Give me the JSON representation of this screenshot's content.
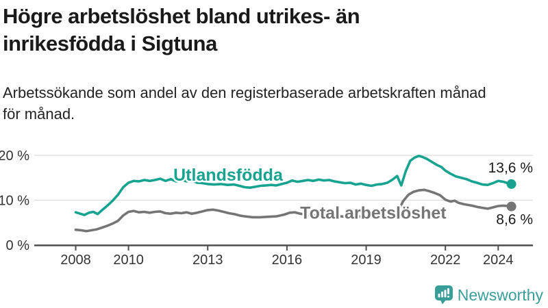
{
  "header": {
    "title_lines": [
      "Högre arbetslöshet bland utrikes- än",
      "inrikesfödda i Sigtuna"
    ],
    "subtitle_lines": [
      "Arbetssökande som andel av den registerbaserade arbetskraften månad",
      "för månad."
    ]
  },
  "footer": {
    "brand": "Newsworthy",
    "brand_icon": "bar-chart-speech-bubble",
    "brand_color": "#3a9e98"
  },
  "colors": {
    "background": "#ffffff",
    "title_text": "#1a1a1a",
    "axis_line": "#4d4d4d",
    "axis_text": "#333333",
    "gridline": "#dcdcdc",
    "series_foreign_born": "#17a38f",
    "series_total": "#757575",
    "annotation_text": "#1a1a1a"
  },
  "chart_data": {
    "type": "line",
    "title": "Högre arbetslöshet bland utrikes- än inrikesfödda i Sigtuna",
    "subtitle": "Arbetssökande som andel av den registerbaserade arbetskraften månad för månad.",
    "xlabel": "",
    "ylabel": "",
    "grid": "horizontal",
    "legend_position": "inline-labels",
    "x_range": [
      2008,
      2024.5
    ],
    "ylim": [
      0,
      21
    ],
    "y_ticks": [
      {
        "value": 0,
        "label": "0 %"
      },
      {
        "value": 10,
        "label": "10 %"
      },
      {
        "value": 20,
        "label": "20 %"
      }
    ],
    "x_ticks": [
      {
        "value": 2008,
        "label": "2008"
      },
      {
        "value": 2010,
        "label": "2010"
      },
      {
        "value": 2013,
        "label": "2013"
      },
      {
        "value": 2016,
        "label": "2016"
      },
      {
        "value": 2019,
        "label": "2019"
      },
      {
        "value": 2022,
        "label": "2022"
      },
      {
        "value": 2024,
        "label": "2024"
      }
    ],
    "series": [
      {
        "name": "Total arbetslöshet",
        "color": "#757575",
        "end_label": "8,6 %",
        "end_value": 8.6,
        "end_label_position": "below",
        "label_anchor": {
          "year": 2016.5,
          "value": 5.9
        },
        "points": [
          [
            2008.0,
            3.4
          ],
          [
            2008.2,
            3.3
          ],
          [
            2008.4,
            3.1
          ],
          [
            2008.6,
            3.3
          ],
          [
            2008.8,
            3.5
          ],
          [
            2009.0,
            3.9
          ],
          [
            2009.2,
            4.3
          ],
          [
            2009.4,
            4.8
          ],
          [
            2009.6,
            5.4
          ],
          [
            2009.8,
            6.6
          ],
          [
            2010.0,
            7.4
          ],
          [
            2010.2,
            7.6
          ],
          [
            2010.4,
            7.3
          ],
          [
            2010.6,
            7.4
          ],
          [
            2010.8,
            7.2
          ],
          [
            2011.0,
            7.4
          ],
          [
            2011.2,
            7.5
          ],
          [
            2011.4,
            7.1
          ],
          [
            2011.6,
            7.0
          ],
          [
            2011.8,
            7.2
          ],
          [
            2012.0,
            7.1
          ],
          [
            2012.2,
            7.3
          ],
          [
            2012.4,
            7.0
          ],
          [
            2012.6,
            7.2
          ],
          [
            2012.8,
            7.5
          ],
          [
            2013.0,
            7.8
          ],
          [
            2013.2,
            7.9
          ],
          [
            2013.4,
            7.7
          ],
          [
            2013.6,
            7.4
          ],
          [
            2013.8,
            7.1
          ],
          [
            2014.0,
            6.9
          ],
          [
            2014.2,
            6.6
          ],
          [
            2014.4,
            6.4
          ],
          [
            2014.7,
            6.2
          ],
          [
            2015.0,
            6.2
          ],
          [
            2015.3,
            6.3
          ],
          [
            2015.6,
            6.4
          ],
          [
            2015.9,
            6.8
          ],
          [
            2016.1,
            7.2
          ],
          [
            2016.3,
            7.3
          ],
          [
            2016.5,
            7.0
          ],
          [
            2016.7,
            6.8
          ],
          [
            2017.0,
            6.6
          ],
          [
            2017.3,
            6.5
          ],
          [
            2017.6,
            6.6
          ],
          [
            2018.0,
            6.4
          ],
          [
            2018.3,
            6.3
          ],
          [
            2018.6,
            6.4
          ],
          [
            2019.0,
            6.3
          ],
          [
            2019.3,
            6.2
          ],
          [
            2019.6,
            6.2
          ],
          [
            2019.8,
            6.3
          ],
          [
            2020.0,
            6.6
          ],
          [
            2020.2,
            7.3
          ],
          [
            2020.4,
            9.8
          ],
          [
            2020.6,
            11.2
          ],
          [
            2020.8,
            11.9
          ],
          [
            2021.0,
            12.2
          ],
          [
            2021.2,
            12.3
          ],
          [
            2021.4,
            12.0
          ],
          [
            2021.6,
            11.6
          ],
          [
            2021.8,
            11.1
          ],
          [
            2022.0,
            10.1
          ],
          [
            2022.2,
            9.7
          ],
          [
            2022.35,
            9.9
          ],
          [
            2022.5,
            9.4
          ],
          [
            2022.7,
            9.1
          ],
          [
            2023.0,
            8.8
          ],
          [
            2023.2,
            8.5
          ],
          [
            2023.4,
            8.3
          ],
          [
            2023.6,
            8.1
          ],
          [
            2023.8,
            8.4
          ],
          [
            2024.0,
            8.7
          ],
          [
            2024.2,
            8.8
          ],
          [
            2024.35,
            8.7
          ],
          [
            2024.5,
            8.6
          ]
        ]
      },
      {
        "name": "Utlandsfödda",
        "color": "#17a38f",
        "end_label": "13,6 %",
        "end_value": 13.6,
        "end_label_position": "above",
        "label_anchor": {
          "year": 2011.7,
          "value": 14.35
        },
        "points": [
          [
            2008.0,
            7.3
          ],
          [
            2008.17,
            7.0
          ],
          [
            2008.33,
            6.7
          ],
          [
            2008.5,
            7.2
          ],
          [
            2008.67,
            7.4
          ],
          [
            2008.83,
            6.9
          ],
          [
            2009.0,
            7.8
          ],
          [
            2009.2,
            8.8
          ],
          [
            2009.4,
            9.9
          ],
          [
            2009.6,
            11.2
          ],
          [
            2009.8,
            12.9
          ],
          [
            2010.0,
            13.9
          ],
          [
            2010.2,
            14.3
          ],
          [
            2010.4,
            14.2
          ],
          [
            2010.6,
            14.5
          ],
          [
            2010.8,
            14.3
          ],
          [
            2011.0,
            14.5
          ],
          [
            2011.2,
            14.8
          ],
          [
            2011.4,
            14.3
          ],
          [
            2011.6,
            14.7
          ],
          [
            2011.8,
            14.2
          ],
          [
            2012.0,
            14.6
          ],
          [
            2012.2,
            14.2
          ],
          [
            2012.4,
            14.4
          ],
          [
            2012.6,
            13.9
          ],
          [
            2012.8,
            13.8
          ],
          [
            2013.0,
            13.6
          ],
          [
            2013.25,
            13.5
          ],
          [
            2013.5,
            13.6
          ],
          [
            2013.75,
            13.4
          ],
          [
            2014.0,
            13.5
          ],
          [
            2014.2,
            13.2
          ],
          [
            2014.4,
            12.9
          ],
          [
            2014.6,
            12.8
          ],
          [
            2014.8,
            13.0
          ],
          [
            2015.0,
            13.2
          ],
          [
            2015.2,
            13.3
          ],
          [
            2015.4,
            13.4
          ],
          [
            2015.6,
            13.3
          ],
          [
            2015.8,
            13.6
          ],
          [
            2016.0,
            13.9
          ],
          [
            2016.2,
            14.4
          ],
          [
            2016.4,
            14.1
          ],
          [
            2016.6,
            14.3
          ],
          [
            2016.8,
            14.5
          ],
          [
            2017.0,
            14.3
          ],
          [
            2017.2,
            14.6
          ],
          [
            2017.4,
            14.4
          ],
          [
            2017.6,
            14.5
          ],
          [
            2017.8,
            14.2
          ],
          [
            2018.0,
            14.0
          ],
          [
            2018.2,
            13.8
          ],
          [
            2018.4,
            13.9
          ],
          [
            2018.6,
            13.5
          ],
          [
            2018.8,
            13.7
          ],
          [
            2019.0,
            13.4
          ],
          [
            2019.2,
            13.2
          ],
          [
            2019.4,
            13.5
          ],
          [
            2019.6,
            13.6
          ],
          [
            2019.8,
            13.9
          ],
          [
            2020.0,
            14.6
          ],
          [
            2020.17,
            15.4
          ],
          [
            2020.33,
            13.3
          ],
          [
            2020.5,
            16.5
          ],
          [
            2020.67,
            18.8
          ],
          [
            2020.83,
            19.5
          ],
          [
            2021.0,
            19.9
          ],
          [
            2021.15,
            19.6
          ],
          [
            2021.3,
            19.2
          ],
          [
            2021.5,
            18.5
          ],
          [
            2021.7,
            17.8
          ],
          [
            2021.85,
            17.4
          ],
          [
            2022.0,
            16.6
          ],
          [
            2022.2,
            15.9
          ],
          [
            2022.4,
            15.3
          ],
          [
            2022.6,
            15.0
          ],
          [
            2022.8,
            14.7
          ],
          [
            2023.0,
            14.2
          ],
          [
            2023.2,
            13.9
          ],
          [
            2023.4,
            13.5
          ],
          [
            2023.6,
            13.4
          ],
          [
            2023.8,
            13.8
          ],
          [
            2024.0,
            14.3
          ],
          [
            2024.2,
            14.1
          ],
          [
            2024.35,
            13.8
          ],
          [
            2024.5,
            13.6
          ]
        ]
      }
    ]
  }
}
